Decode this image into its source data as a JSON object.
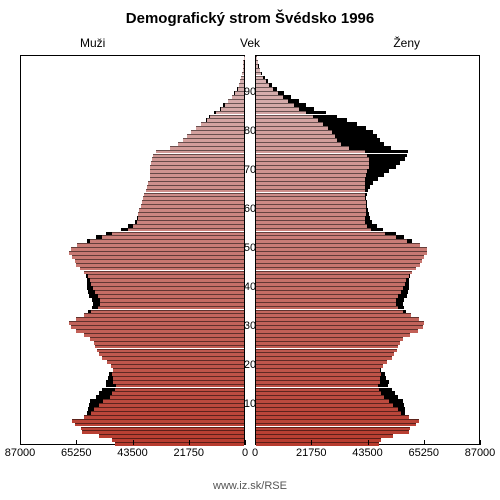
{
  "title": "Demografický strom Švédsko 1996",
  "title_fontsize": 15,
  "label_men": "Muži",
  "label_age": "Vek",
  "label_women": "Ženy",
  "label_fontsize": 12,
  "footer": "www.iz.sk/RSE",
  "background_color": "#ffffff",
  "border_color": "#000000",
  "shadow_color": "#000000",
  "x_max": 87000,
  "x_ticks_left": [
    87000,
    65250,
    43500,
    21750,
    0
  ],
  "x_ticks_right": [
    0,
    21750,
    43500,
    65250,
    87000
  ],
  "age_labels": [
    10,
    20,
    30,
    40,
    50,
    60,
    70,
    80,
    90
  ],
  "color_top": "#d9b8b8",
  "color_bottom": "#b83c2f",
  "ages": {
    "men": [
      50000,
      51000,
      56000,
      62500,
      63000,
      65500,
      66500,
      62000,
      59000,
      58000,
      56000,
      54500,
      52000,
      51000,
      50000,
      49500,
      50500,
      50500,
      51000,
      50500,
      51500,
      53000,
      55000,
      56000,
      57000,
      57500,
      58000,
      59500,
      62000,
      65000,
      67000,
      67500,
      65000,
      62000,
      59000,
      56500,
      55500,
      55500,
      56500,
      57500,
      58500,
      59000,
      59500,
      60500,
      62000,
      63500,
      65000,
      65500,
      66500,
      67500,
      67000,
      64500,
      59500,
      55000,
      51000,
      45000,
      43000,
      41500,
      41000,
      41000,
      40500,
      40000,
      39500,
      39000,
      38500,
      38000,
      37500,
      37000,
      36500,
      36500,
      36500,
      36500,
      36000,
      35500,
      35000,
      34000,
      28500,
      25500,
      23500,
      22000,
      20500,
      18500,
      16500,
      14500,
      13000,
      11000,
      9000,
      7500,
      6000,
      4500,
      3500,
      2500,
      2000,
      1500,
      1000,
      700,
      500,
      350,
      200,
      150
    ],
    "women": [
      47500,
      48500,
      53000,
      59000,
      59500,
      62000,
      63000,
      59000,
      56000,
      55000,
      53000,
      51500,
      49500,
      48500,
      47500,
      47000,
      48000,
      48000,
      48500,
      48000,
      49000,
      50500,
      52500,
      53500,
      54500,
      55000,
      55500,
      57000,
      59500,
      62500,
      64500,
      65000,
      63000,
      60000,
      57000,
      55000,
      54000,
      54000,
      55000,
      56000,
      57000,
      57500,
      58000,
      59000,
      60500,
      62000,
      63500,
      64000,
      65000,
      66000,
      66000,
      63500,
      58500,
      54000,
      50000,
      44500,
      43000,
      42000,
      42000,
      42500,
      42500,
      42500,
      42500,
      42000,
      42000,
      42000,
      42000,
      42000,
      42000,
      42500,
      43000,
      43500,
      43500,
      43500,
      43000,
      42000,
      36000,
      33000,
      31500,
      30500,
      29500,
      28000,
      26000,
      24000,
      22000,
      19500,
      16500,
      14500,
      12500,
      10500,
      8500,
      6500,
      5000,
      3800,
      2800,
      2000,
      1400,
      900,
      600,
      400
    ],
    "men_2004_diff": [
      1.0,
      1.0,
      1.0,
      1.0,
      1.0,
      1.0,
      1.0,
      1.0,
      1.03,
      1.04,
      1.07,
      1.09,
      1.1,
      1.1,
      1.1,
      1.08,
      1.06,
      1.04,
      1.02,
      1.0,
      1.0,
      1.0,
      1.0,
      1.0,
      1.0,
      1.0,
      1.0,
      1.0,
      1.0,
      1.0,
      1.0,
      1.0,
      1.0,
      1.0,
      1.02,
      1.04,
      1.05,
      1.06,
      1.06,
      1.05,
      1.04,
      1.03,
      1.02,
      1.01,
      1.0,
      1.0,
      1.0,
      1.0,
      1.0,
      1.0,
      1.0,
      1.0,
      1.02,
      1.04,
      1.05,
      1.06,
      1.04,
      1.02,
      1.01,
      1.0,
      1.0,
      1.0,
      1.0,
      1.0,
      1.0,
      1.0,
      1.0,
      1.0,
      1.0,
      1.0,
      1.0,
      1.0,
      1.0,
      1.0,
      1.0,
      1.0,
      1.0,
      1.0,
      1.0,
      1.0,
      1.0,
      1.0,
      1.0,
      1.02,
      1.03,
      1.04,
      1.05,
      1.06,
      1.06,
      1.06,
      1.06,
      1.06,
      1.06,
      1.05,
      1.05,
      1.04,
      1.03,
      1.02,
      1.01,
      1.0
    ],
    "women_2004_diff": [
      1.0,
      1.0,
      1.0,
      1.0,
      1.0,
      1.0,
      1.0,
      1.0,
      1.03,
      1.05,
      1.08,
      1.1,
      1.11,
      1.11,
      1.11,
      1.09,
      1.07,
      1.05,
      1.03,
      1.01,
      1.0,
      1.0,
      1.0,
      1.0,
      1.0,
      1.0,
      1.0,
      1.0,
      1.0,
      1.0,
      1.0,
      1.0,
      1.0,
      1.0,
      1.02,
      1.04,
      1.05,
      1.06,
      1.06,
      1.05,
      1.04,
      1.03,
      1.02,
      1.01,
      1.0,
      1.0,
      1.0,
      1.0,
      1.0,
      1.0,
      1.0,
      1.0,
      1.03,
      1.06,
      1.08,
      1.1,
      1.09,
      1.07,
      1.05,
      1.03,
      1.02,
      1.01,
      1.01,
      1.01,
      1.02,
      1.03,
      1.05,
      1.08,
      1.12,
      1.16,
      1.2,
      1.24,
      1.28,
      1.32,
      1.36,
      1.4,
      1.45,
      1.5,
      1.52,
      1.54,
      1.54,
      1.52,
      1.5,
      1.46,
      1.42,
      1.38,
      1.36,
      1.34,
      1.32,
      1.3,
      1.28,
      1.26,
      1.24,
      1.22,
      1.2,
      1.18,
      1.15,
      1.12,
      1.08,
      1.04
    ]
  }
}
